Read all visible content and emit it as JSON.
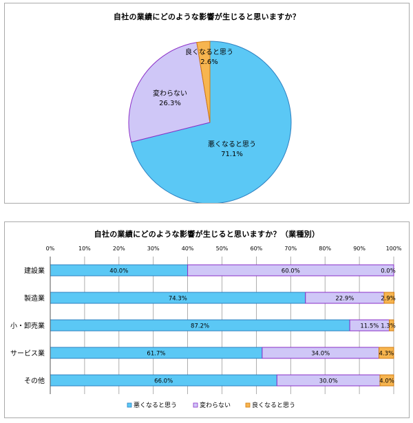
{
  "colors": {
    "bad": "#5bc8f5",
    "bad_edge": "#2c7fc0",
    "same": "#cfc7f7",
    "same_edge": "#8a2cc7",
    "good": "#f7b54f",
    "good_edge": "#d07a10"
  },
  "chart_data": [
    {
      "type": "pie",
      "title": "自社の業績にどのような影響が生じると思いますか？",
      "slices": [
        {
          "key": "bad",
          "label": "悪くなると思う",
          "value": 71.1,
          "value_text": "71.1%"
        },
        {
          "key": "same",
          "label": "変わらない",
          "value": 26.3,
          "value_text": "26.3%"
        },
        {
          "key": "good",
          "label": "良くなると思う",
          "value": 2.6,
          "value_text": "2.6%"
        }
      ]
    },
    {
      "type": "bar",
      "orientation": "horizontal",
      "stacked": "percent",
      "title": "自社の業績にどのような影響が生じると思いますか？（業種別）",
      "xlim": [
        0,
        100
      ],
      "x_ticks": [
        "0%",
        "10%",
        "20%",
        "30%",
        "40%",
        "50%",
        "60%",
        "70%",
        "80%",
        "90%",
        "100%"
      ],
      "grid": true,
      "legend_position": "bottom",
      "categories": [
        "建設業",
        "製造業",
        "小・卸売業",
        "サービス業",
        "その他"
      ],
      "series": [
        {
          "key": "bad",
          "name": "悪くなると思う",
          "values": [
            40.0,
            74.3,
            87.2,
            61.7,
            66.0
          ],
          "labels": [
            "40.0%",
            "74.3%",
            "87.2%",
            "61.7%",
            "66.0%"
          ]
        },
        {
          "key": "same",
          "name": "変わらない",
          "values": [
            60.0,
            22.9,
            11.5,
            34.0,
            30.0
          ],
          "labels": [
            "60.0%",
            "22.9%",
            "11.5%",
            "34.0%",
            "30.0%"
          ]
        },
        {
          "key": "good",
          "name": "良くなると思う",
          "values": [
            0.0,
            2.9,
            1.3,
            4.3,
            4.0
          ],
          "labels": [
            "0.0%",
            "2.9%",
            "1.3%",
            "4.3%",
            "4.0%"
          ]
        }
      ]
    }
  ]
}
